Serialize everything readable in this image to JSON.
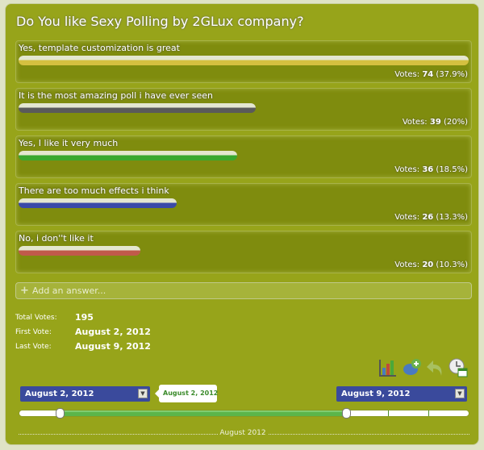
{
  "poll": {
    "title": "Do You like Sexy Polling by 2GLux company?",
    "answers": [
      {
        "label": "Yes, template customization is great",
        "votes_label": "Votes:",
        "votes": "74",
        "percent": "(37.9%)",
        "count": 74,
        "color": "#d4c040"
      },
      {
        "label": "It is the most amazing poll i have ever seen",
        "votes_label": "Votes:",
        "votes": "39",
        "percent": "(20%)",
        "count": 39,
        "color": "#5a5a5a"
      },
      {
        "label": "Yes, I like it very much",
        "votes_label": "Votes:",
        "votes": "36",
        "percent": "(18.5%)",
        "count": 36,
        "color": "#3aa830"
      },
      {
        "label": "There are too much effects i think",
        "votes_label": "Votes:",
        "votes": "26",
        "percent": "(13.3%)",
        "count": 26,
        "color": "#3a4aa8"
      },
      {
        "label": "No, i don''t like it",
        "votes_label": "Votes:",
        "votes": "20",
        "percent": "(10.3%)",
        "count": 20,
        "color": "#c05a4a"
      }
    ],
    "add_answer_placeholder": "Add an answer..."
  },
  "stats": {
    "total_label": "Total Votes:",
    "total": "195",
    "first_label": "First Vote:",
    "first": "August 2, 2012",
    "last_label": "Last Vote:",
    "last": "August 9, 2012"
  },
  "range": {
    "from": "August 2, 2012",
    "to": "August 9, 2012",
    "tooltip": "August 2, 2012",
    "month_label": "August 2012"
  }
}
